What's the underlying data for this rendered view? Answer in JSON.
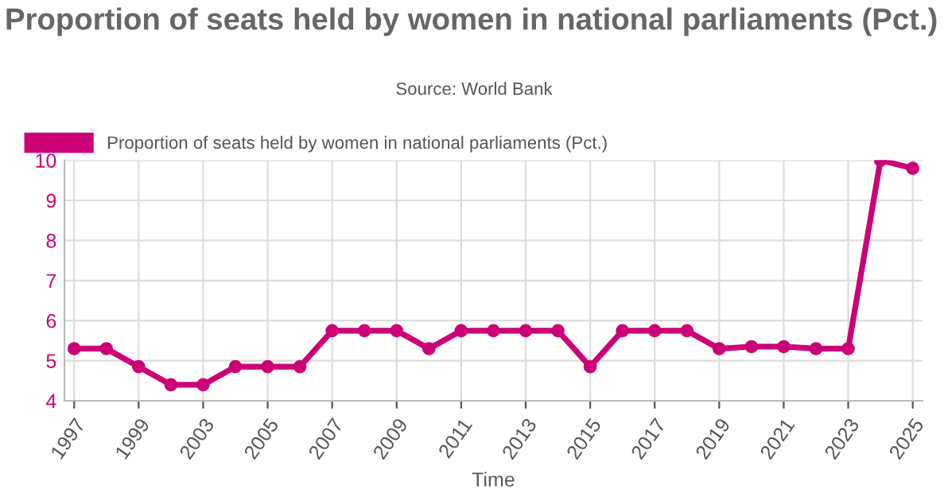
{
  "chart_data": {
    "type": "line",
    "title": "Proportion of seats held by women in national parliaments (Pct.)",
    "annotations": [
      "Source: World Bank"
    ],
    "xlabel": "Time",
    "categories": [
      "1997",
      null,
      "1999",
      null,
      "2003",
      null,
      "2005",
      null,
      "2007",
      null,
      "2009",
      null,
      "2011",
      null,
      "2013",
      null,
      "2015",
      null,
      "2017",
      null,
      "2019",
      null,
      "2021",
      null,
      "2023",
      null,
      "2025"
    ],
    "series": [
      {
        "name": "Proportion of seats held by women in national parliaments (Pct.)",
        "color": "#cc0077",
        "values": [
          5.3,
          5.3,
          4.85,
          4.4,
          4.4,
          4.85,
          4.85,
          4.85,
          5.75,
          5.75,
          5.75,
          5.3,
          5.75,
          5.75,
          5.75,
          5.75,
          4.85,
          5.75,
          5.75,
          5.75,
          5.3,
          5.35,
          5.35,
          5.3,
          5.3,
          10,
          9.8
        ]
      }
    ],
    "ylim": [
      4,
      10
    ],
    "yticks": [
      4,
      5,
      6,
      7,
      8,
      9,
      10
    ],
    "grid": true,
    "legend": "top left",
    "marker": "circle",
    "line_style": "solid"
  }
}
